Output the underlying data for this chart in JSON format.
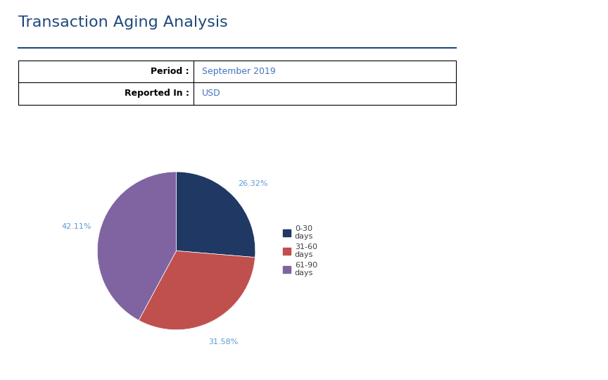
{
  "title": "Transaction Aging Analysis",
  "title_color": "#1F497D",
  "title_fontsize": 16,
  "line_color": "#1F497D",
  "period_label": "Period :",
  "period_value": "September 2019",
  "reported_label": "Reported In :",
  "reported_value": "USD",
  "table_value_color": "#4472C4",
  "pie_values": [
    26.32,
    31.58,
    42.11
  ],
  "pie_labels": [
    "0-30\ndays",
    "31-60\ndays",
    "61-90\ndays"
  ],
  "pie_colors": [
    "#1F3864",
    "#C0504D",
    "#8064A2"
  ],
  "pie_pct_labels": [
    "26.32%",
    "31.58%",
    "42.11%"
  ],
  "background_color": "#FFFFFF",
  "label_color": "#5B9BD5",
  "legend_label_color": "#404040"
}
